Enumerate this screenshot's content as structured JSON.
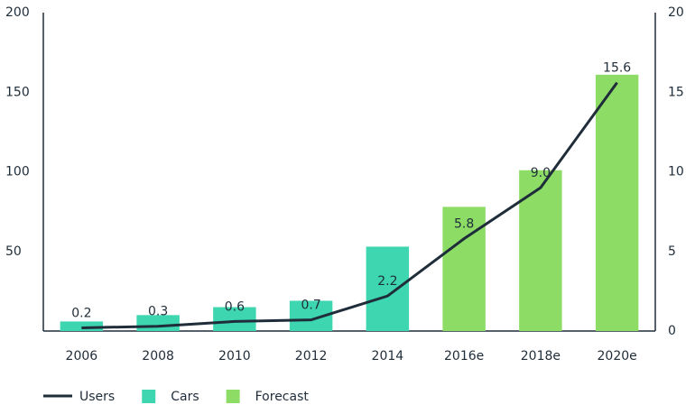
{
  "chart_data": {
    "type": "bar",
    "categories": [
      "2006",
      "2008",
      "2010",
      "2012",
      "2014",
      "2016e",
      "2018e",
      "2020e"
    ],
    "series": [
      {
        "name": "Users",
        "type": "line",
        "axis": "y2",
        "color": "#1f2d3a",
        "values": [
          0.2,
          0.3,
          0.6,
          0.7,
          2.2,
          5.8,
          9.0,
          15.6
        ],
        "value_labels": [
          "0.2",
          "0.3",
          "0.6",
          "0.7",
          "2.2",
          "5.8",
          "9.0",
          "15.6"
        ]
      },
      {
        "name": "Cars",
        "type": "bar",
        "color": "#3dd6b0",
        "values": [
          6,
          10,
          15,
          19,
          53,
          null,
          null,
          null
        ]
      },
      {
        "name": "Forecast",
        "type": "bar",
        "color": "#8ddc66",
        "values": [
          null,
          null,
          null,
          null,
          null,
          78,
          101,
          161
        ]
      }
    ],
    "ylim": [
      0,
      200
    ],
    "yticks": [
      50,
      100,
      150,
      200
    ],
    "y2lim": [
      0,
      20
    ],
    "y2ticks": [
      0,
      5,
      10,
      15,
      20
    ],
    "grid": false,
    "legend": "bottom-left"
  }
}
